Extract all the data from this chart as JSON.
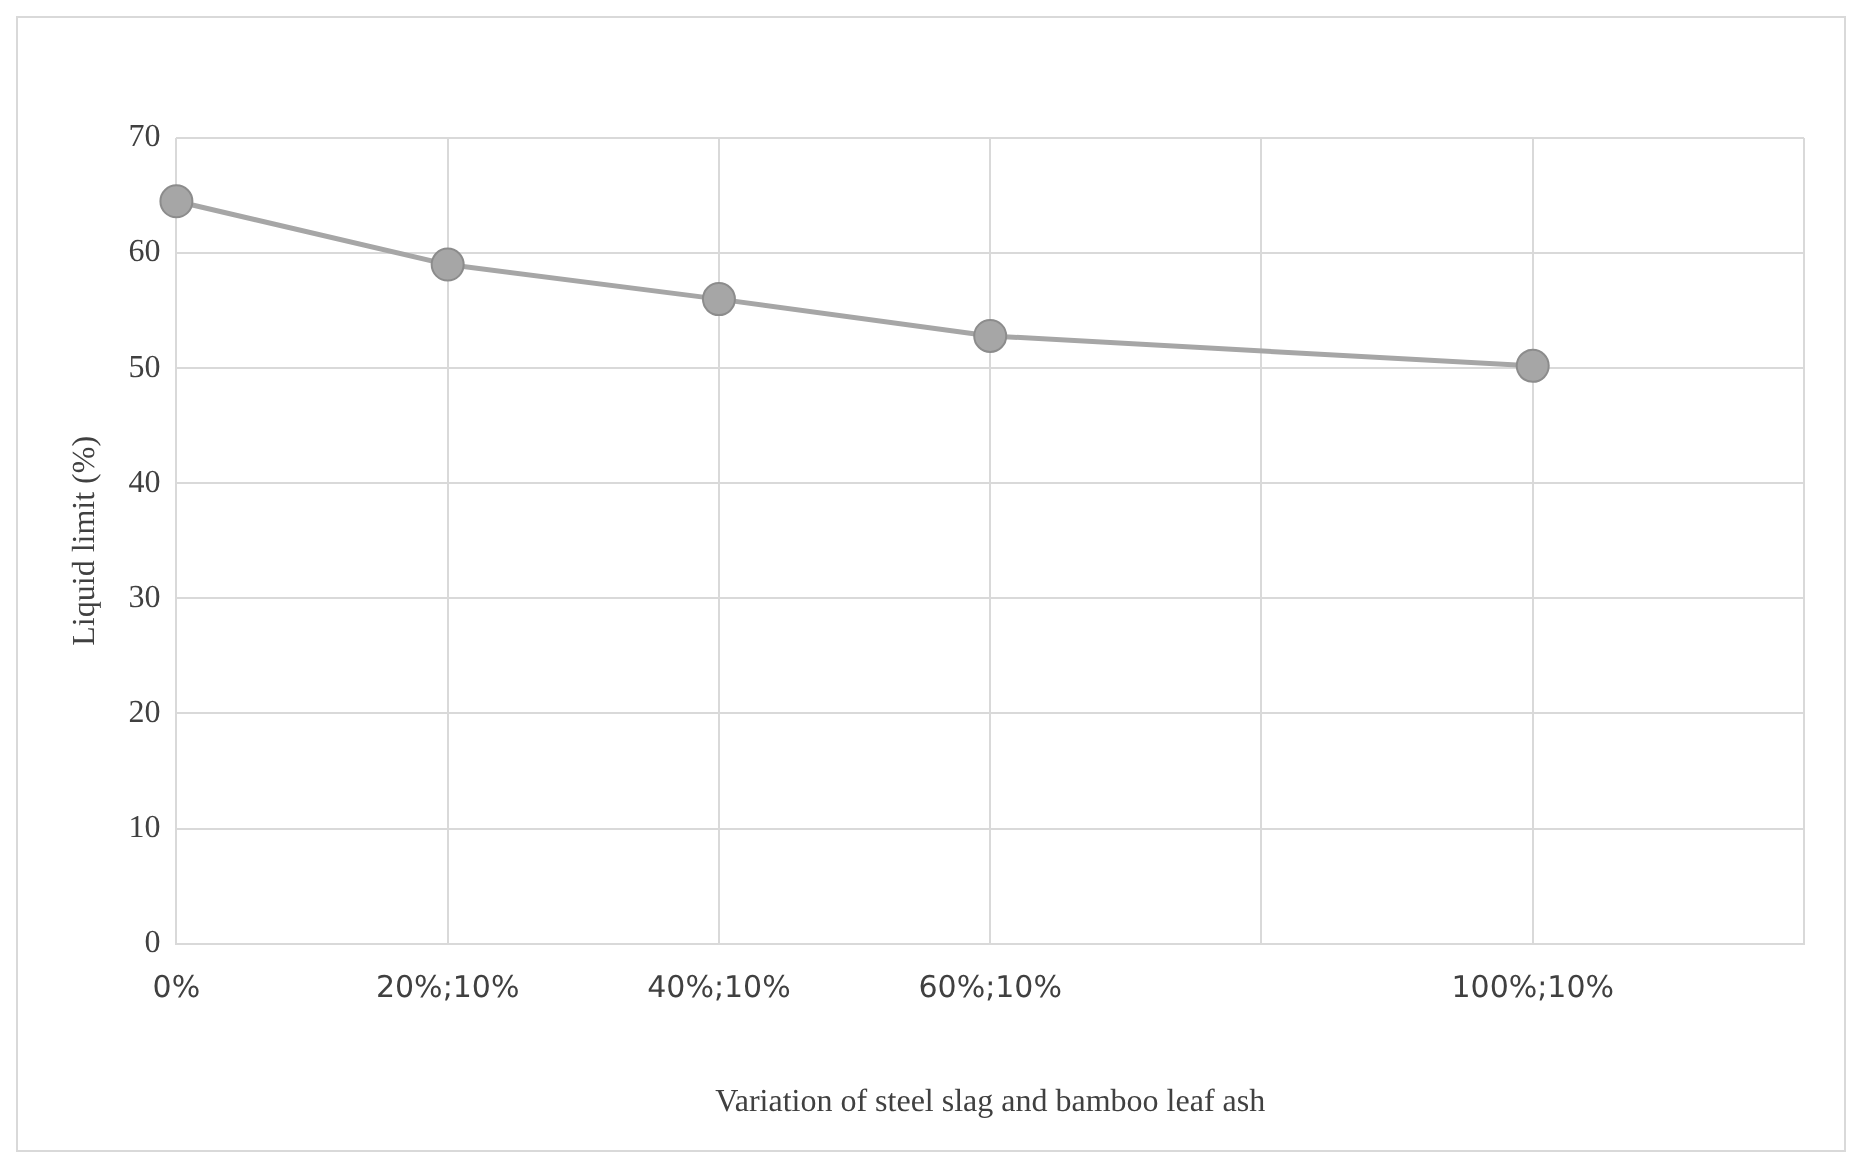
{
  "chart_data": {
    "type": "line",
    "xlabel": "Variation of steel slag and bamboo leaf ash",
    "ylabel": "Liquid limit (%)",
    "categories": [
      "0%",
      "20%;10%",
      "40%;10%",
      "60%;10%",
      null,
      "100%;10%",
      null
    ],
    "series": [
      {
        "color": "#a6a6a6",
        "values": [
          64.5,
          59,
          56,
          52.8,
          null,
          50.2,
          null
        ]
      }
    ],
    "ylim": [
      0,
      70
    ],
    "yticks": [
      0,
      10,
      20,
      30,
      40,
      50,
      60,
      70
    ],
    "grid": true,
    "legend": false,
    "marker": "circle",
    "line_style": "solid"
  }
}
